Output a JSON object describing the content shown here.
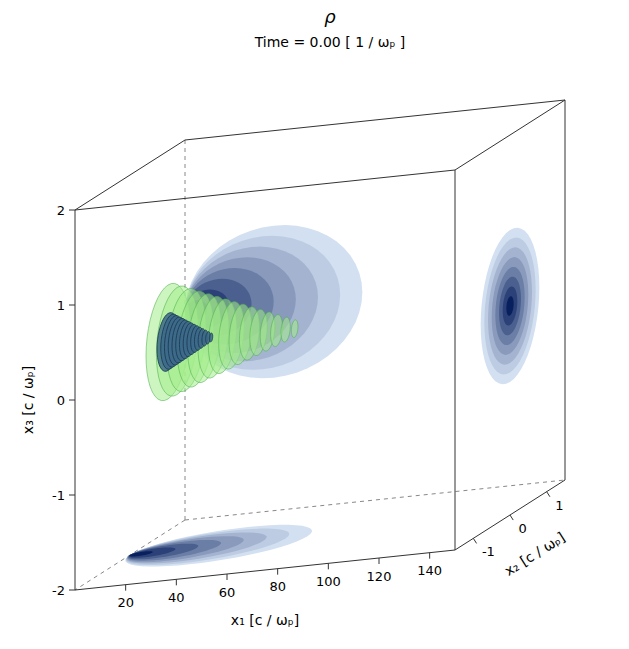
{
  "chart_data": {
    "type": "volume",
    "title": "ρ",
    "subtitle": "Time = 0.00 [ 1 / ωₚ ]",
    "x_label": "x₁ [c / ωₚ]",
    "y_label": "x₂ [c / ωₚ]",
    "z_label": "x₃ [c / ωₚ]",
    "xlim": [
      0,
      150
    ],
    "ylim": [
      -1.5,
      1.5
    ],
    "zlim": [
      -2,
      2
    ],
    "xticks": [
      20,
      40,
      60,
      80,
      100,
      120,
      140
    ],
    "yticks": [
      -1,
      0,
      1
    ],
    "zticks": [
      -2,
      -1,
      0,
      1,
      2
    ],
    "color": "#08205e",
    "bunch": {
      "x1": [
        0,
        70
      ],
      "x2_center": 0,
      "x3_center": 0.2,
      "x2_sigma": 0.4,
      "x3_sigma": 0.4
    },
    "isosurface": {
      "x1": [
        15,
        65
      ],
      "radius": 0.6
    },
    "core": {
      "x1": [
        15,
        32
      ],
      "radius": 0.3
    }
  }
}
